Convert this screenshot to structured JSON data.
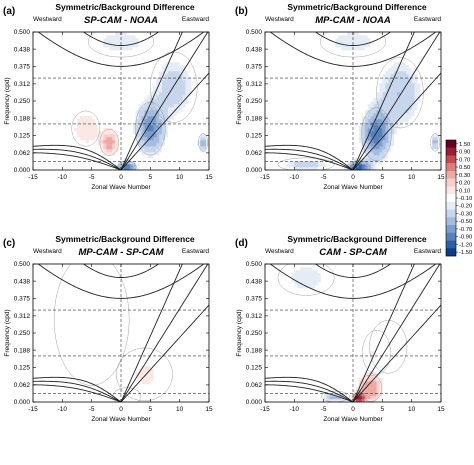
{
  "chart_data": [
    {
      "type": "heatmap",
      "panel_letter": "(a)",
      "title": "Symmetric/Background Difference",
      "subtitle": "SP-CAM - NOAA",
      "xlabel": "Zonal Wave Number",
      "ylabel": "Frequency (cpd)",
      "left_label": "Westward",
      "right_label": "Eastward",
      "xlim": [
        -15,
        15
      ],
      "ylim": [
        0,
        0.5
      ],
      "xticks": [
        "-15",
        "-10",
        "-5",
        "0",
        "5",
        "10",
        "15"
      ],
      "yticks": [
        "0.000",
        "0.062",
        "0.125",
        "0.188",
        "0.250",
        "0.312",
        "0.375",
        "0.438",
        "0.500"
      ],
      "grid": "dashed lines at 0.03, 0.167, 0.333 cpd and zonal wave number 0",
      "features": [
        {
          "k": 5,
          "w": 0.15,
          "value": -0.9,
          "sk": 1.6,
          "sw": 0.06
        },
        {
          "k": 9,
          "w": 0.3,
          "value": -0.4,
          "sk": 2.5,
          "sw": 0.08
        },
        {
          "k": 1,
          "w": 0.01,
          "value": -1.2,
          "sk": 1.0,
          "sw": 0.015
        },
        {
          "k": 0,
          "w": 0.465,
          "value": -0.3,
          "sk": 3.5,
          "sw": 0.035
        },
        {
          "k": 14,
          "w": 0.1,
          "value": -0.7,
          "sk": 0.5,
          "sw": 0.02
        },
        {
          "k": -2,
          "w": 0.1,
          "value": 0.4,
          "sk": 1.0,
          "sw": 0.03
        },
        {
          "k": -6,
          "w": 0.15,
          "value": 0.2,
          "sk": 1.5,
          "sw": 0.04
        }
      ]
    },
    {
      "type": "heatmap",
      "panel_letter": "(b)",
      "title": "Symmetric/Background Difference",
      "subtitle": "MP-CAM - NOAA",
      "xlabel": "Zonal Wave Number",
      "ylabel": "Frequency (cpd)",
      "left_label": "Westward",
      "right_label": "Eastward",
      "xlim": [
        -15,
        15
      ],
      "ylim": [
        0,
        0.5
      ],
      "xticks": [
        "-15",
        "-10",
        "-5",
        "0",
        "5",
        "10",
        "15"
      ],
      "yticks": [
        "0.000",
        "0.062",
        "0.125",
        "0.188",
        "0.250",
        "0.312",
        "0.375",
        "0.438",
        "0.500"
      ],
      "grid": "dashed lines at 0.03, 0.167, 0.333 cpd and zonal wave number 0",
      "features": [
        {
          "k": 4,
          "w": 0.13,
          "value": -1.0,
          "sk": 1.6,
          "sw": 0.06
        },
        {
          "k": 8,
          "w": 0.28,
          "value": -0.5,
          "sk": 2.5,
          "sw": 0.08
        },
        {
          "k": 1,
          "w": 0.01,
          "value": -1.3,
          "sk": 1.2,
          "sw": 0.015
        },
        {
          "k": 0,
          "w": 0.465,
          "value": -0.3,
          "sk": 3.5,
          "sw": 0.035
        },
        {
          "k": 14,
          "w": 0.1,
          "value": -0.6,
          "sk": 0.5,
          "sw": 0.02
        },
        {
          "k": -8,
          "w": 0.02,
          "value": -0.4,
          "sk": 3.0,
          "sw": 0.015
        }
      ]
    },
    {
      "type": "heatmap",
      "panel_letter": "(c)",
      "title": "Symmetric/Background Difference",
      "subtitle": "MP-CAM - SP-CAM",
      "xlabel": "Zonal Wave Number",
      "ylabel": "Frequency (cpd)",
      "left_label": "Westward",
      "right_label": "Eastward",
      "xlim": [
        -15,
        15
      ],
      "ylim": [
        0,
        0.5
      ],
      "xticks": [
        "-15",
        "-10",
        "-5",
        "0",
        "5",
        "10",
        "15"
      ],
      "yticks": [
        "0.000",
        "0.062",
        "0.125",
        "0.188",
        "0.250",
        "0.312",
        "0.375",
        "0.438",
        "0.500"
      ],
      "grid": "dashed lines at 0.03, 0.167, 0.333 cpd and zonal wave number 0",
      "features": [
        {
          "k": -5,
          "w": 0.3,
          "value": -0.15,
          "sk": 4.0,
          "sw": 0.15
        },
        {
          "k": 4,
          "w": 0.1,
          "value": 0.12,
          "sk": 3.0,
          "sw": 0.06
        },
        {
          "k": 1,
          "w": 0.02,
          "value": -0.1,
          "sk": 1.5,
          "sw": 0.02
        }
      ]
    },
    {
      "type": "heatmap",
      "panel_letter": "(d)",
      "title": "Symmetric/Background Difference",
      "subtitle": "CAM - SP-CAM",
      "xlabel": "Zonal Wave Number",
      "ylabel": "Frequency (cpd)",
      "left_label": "Westward",
      "right_label": "Eastward",
      "xlim": [
        -15,
        15
      ],
      "ylim": [
        0,
        0.5
      ],
      "xticks": [
        "-15",
        "-10",
        "-5",
        "0",
        "5",
        "10",
        "15"
      ],
      "yticks": [
        "0.000",
        "0.062",
        "0.125",
        "0.188",
        "0.250",
        "0.312",
        "0.375",
        "0.438",
        "0.500"
      ],
      "grid": "dashed lines at 0.03, 0.167, 0.333 cpd and zonal wave number 0",
      "features": [
        {
          "k": 1,
          "w": 0.015,
          "value": 1.1,
          "sk": 0.7,
          "sw": 0.012
        },
        {
          "k": 3,
          "w": 0.05,
          "value": 0.5,
          "sk": 1.2,
          "sw": 0.03
        },
        {
          "k": -8,
          "w": 0.45,
          "value": -0.3,
          "sk": 3.0,
          "sw": 0.04
        },
        {
          "k": -3,
          "w": 0.02,
          "value": -0.6,
          "sk": 1.5,
          "sw": 0.012
        },
        {
          "k": 4,
          "w": 0.18,
          "value": 0.2,
          "sk": 1.5,
          "sw": 0.05
        },
        {
          "k": 6,
          "w": 0.2,
          "value": -0.2,
          "sk": 2.0,
          "sw": 0.06
        }
      ]
    }
  ],
  "colorbar": {
    "ticks": [
      "1.50",
      "0.90",
      "0.70",
      "0.50",
      "0.30",
      "0.20",
      "0.10",
      "-0.10",
      "-0.20",
      "-0.30",
      "-0.50",
      "-0.70",
      "-0.90",
      "-1.20",
      "-1.50"
    ],
    "values": [
      1.5,
      0.9,
      0.7,
      0.5,
      0.3,
      0.2,
      0.1,
      -0.1,
      -0.2,
      -0.3,
      -0.5,
      -0.7,
      -0.9,
      -1.2,
      -1.5
    ],
    "colors": [
      "#67001f",
      "#9e1d32",
      "#c44a4f",
      "#dc7d7a",
      "#eda9a4",
      "#f6cfcb",
      "#fbe8e6",
      "#ffffff",
      "#e5ecf6",
      "#c7d6ec",
      "#a3bcdf",
      "#7c9fce",
      "#5680bc",
      "#2e5ea6",
      "#0b3c8c"
    ]
  },
  "dispersion_curves": {
    "kelvin_equivalent_depths_m": [
      12,
      25,
      50
    ],
    "eig_equivalent_depths_m": [
      12,
      25,
      50
    ],
    "er_equivalent_depths_m": [
      12,
      25,
      50
    ]
  }
}
